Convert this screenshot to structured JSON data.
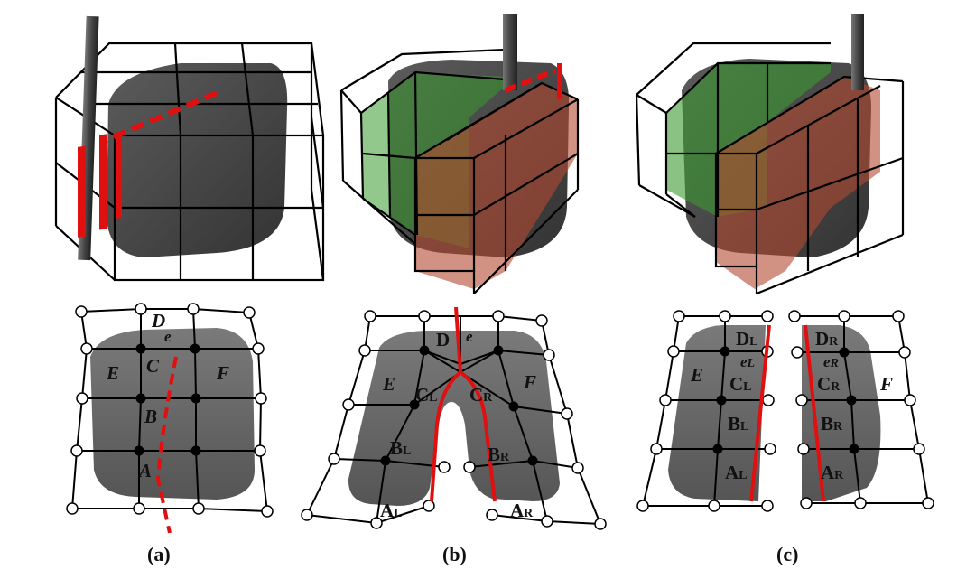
{
  "colors": {
    "lattice": "#000000",
    "body": "#4a4a4a",
    "body_top": "#5a5a5a",
    "cut": "#e01010",
    "green": "#3a9a30",
    "red_region": "#b44a30",
    "blade": "#555555"
  },
  "panel_a": {
    "caption": "(a)",
    "labels": {
      "A": "A",
      "B": "B",
      "C": "C",
      "D": "D",
      "E": "E",
      "F": "F",
      "e": "e"
    }
  },
  "panel_b": {
    "caption": "(b)",
    "labels": {
      "D": "D",
      "E": "E",
      "F": "F",
      "e": "e",
      "CL_main": "C",
      "CL_sub": "L",
      "CR_main": "C",
      "CR_sub": "R",
      "BL_main": "B",
      "BL_sub": "L",
      "BR_main": "B",
      "BR_sub": "R",
      "AL_main": "A",
      "AL_sub": "L",
      "AR_main": "A",
      "AR_sub": "R"
    }
  },
  "panel_c": {
    "caption": "(c)",
    "labels": {
      "E": "E",
      "F": "F",
      "DL_main": "D",
      "DL_sub": "L",
      "DR_main": "D",
      "DR_sub": "R",
      "eL_main": "e",
      "eL_sub": "L",
      "eR_main": "e",
      "eR_sub": "R",
      "CL_main": "C",
      "CL_sub": "L",
      "CR_main": "C",
      "CR_sub": "R",
      "BL_main": "B",
      "BL_sub": "L",
      "BR_main": "B",
      "BR_sub": "R",
      "AL_main": "A",
      "AL_sub": "L",
      "AR_main": "A",
      "AR_sub": "R"
    }
  }
}
